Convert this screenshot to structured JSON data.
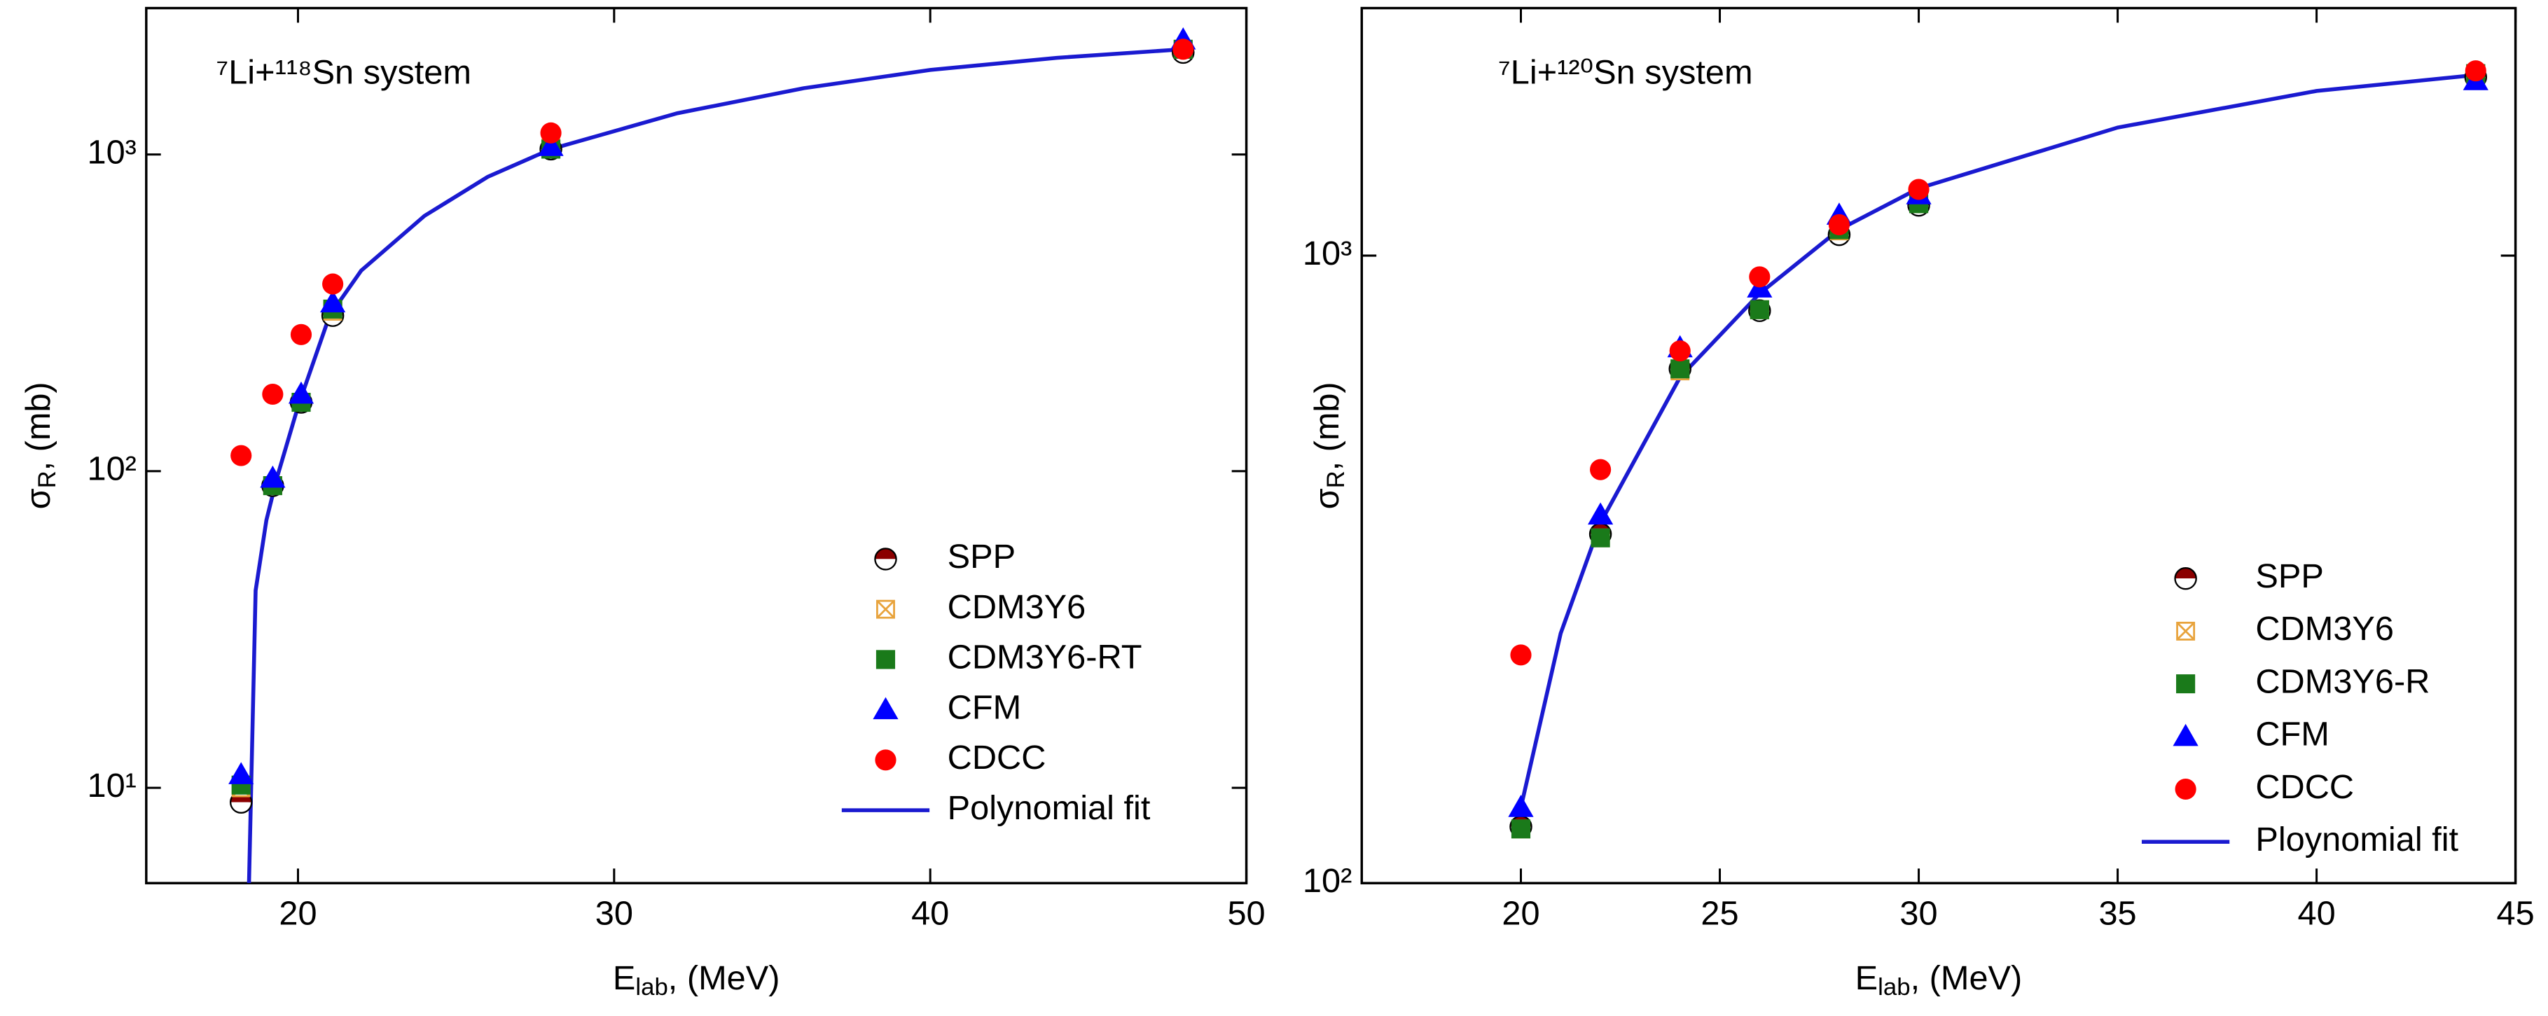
{
  "chart_data": {
    "charts": [
      {
        "type": "scatter",
        "title": "⁷Li+¹¹⁸Sn system",
        "x_label": [
          "E",
          "lab",
          ", (MeV)"
        ],
        "y_label": [
          "σ",
          "R",
          ", (mb)"
        ],
        "xlim": [
          15.2,
          50
        ],
        "xticks": [
          20,
          30,
          40,
          50
        ],
        "ylim": [
          5,
          2900
        ],
        "y_log": true,
        "yticks": [
          {
            "value": 10,
            "label": "10¹"
          },
          {
            "value": 100,
            "label": "10²"
          },
          {
            "value": 1000,
            "label": "10³"
          }
        ],
        "legend": "lower right",
        "series": [
          {
            "name": "SPP",
            "color": "#8b0000",
            "marker": "half-circle",
            "x": [
              18.2,
              19.2,
              20.1,
              21.1,
              28,
              48
            ],
            "values": [
              9,
              90,
              165,
              310,
              1040,
              2100
            ]
          },
          {
            "name": "CDM3Y6",
            "color": "#e8a33c",
            "marker": "crossed-square",
            "x": [
              18.2,
              19.2,
              20.1,
              21.1,
              28,
              48
            ],
            "values": [
              10,
              90,
              165,
              320,
              1050,
              2150
            ]
          },
          {
            "name": "CDM3Y6-RT",
            "color": "#1a7a1a",
            "marker": "square",
            "x": [
              18.2,
              19.2,
              20.1,
              21.1,
              28,
              48
            ],
            "values": [
              10.2,
              90,
              165,
              325,
              1040,
              2150
            ]
          },
          {
            "name": "CFM",
            "color": "#0000ff",
            "marker": "triangle",
            "x": [
              18.2,
              19.2,
              20.1,
              21.1,
              28,
              48
            ],
            "values": [
              11,
              95,
              175,
              340,
              1060,
              2300
            ]
          },
          {
            "name": "CDCC",
            "color": "#ff0000",
            "marker": "circle",
            "x": [
              18.2,
              19.2,
              20.1,
              21.1,
              28,
              48
            ],
            "values": [
              112,
              175,
              270,
              390,
              1170,
              2150
            ]
          },
          {
            "name": "Polynomial fit",
            "color": "#1a1ad0",
            "marker": "line",
            "x": [
              18.45,
              18.66,
              19.0,
              19.33,
              20,
              21,
              22,
              24,
              26,
              28,
              32,
              36,
              40,
              44,
              48
            ],
            "values": [
              5,
              42,
              70,
              95,
              160,
              310,
              430,
              640,
              850,
              1040,
              1350,
              1620,
              1850,
              2020,
              2150
            ]
          }
        ]
      },
      {
        "type": "scatter",
        "title": "⁷Li+¹²⁰Sn system",
        "x_label": [
          "E",
          "lab",
          ", (MeV)"
        ],
        "y_label": [
          "σ",
          "R",
          ", (mb)"
        ],
        "xlim": [
          16,
          45
        ],
        "xticks": [
          20,
          25,
          30,
          35,
          40,
          45
        ],
        "ylim": [
          100,
          2480
        ],
        "y_log": true,
        "yticks": [
          {
            "value": 100,
            "label": "10²"
          },
          {
            "value": 1000,
            "label": "10³"
          }
        ],
        "legend": "lower right",
        "series": [
          {
            "name": "SPP",
            "color": "#8b0000",
            "marker": "half-circle",
            "x": [
              20,
              22,
              24,
              26,
              28,
              30,
              44
            ],
            "values": [
              123,
              360,
              660,
              817,
              1080,
              1203,
              1925
            ]
          },
          {
            "name": "CDM3Y6",
            "color": "#e8a33c",
            "marker": "crossed-square",
            "x": [
              20,
              22,
              24,
              26,
              28,
              30,
              44
            ],
            "values": [
              122,
              355,
              655,
              820,
              1095,
              1210,
              1950
            ]
          },
          {
            "name": "CDM3Y6-R",
            "color": "#1a7a1a",
            "marker": "square",
            "x": [
              20,
              22,
              24,
              26,
              28,
              30,
              44
            ],
            "values": [
              122,
              355,
              660,
              820,
              1100,
              1210,
              1950
            ]
          },
          {
            "name": "CFM",
            "color": "#0000ff",
            "marker": "triangle",
            "x": [
              20,
              22,
              24,
              26,
              28,
              30,
              44
            ],
            "values": [
              132,
              386,
              713,
              888,
              1160,
              1250,
              1900
            ]
          },
          {
            "name": "CDCC",
            "color": "#ff0000",
            "marker": "circle",
            "x": [
              20,
              22,
              24,
              26,
              28,
              30,
              44
            ],
            "values": [
              231,
              456,
              705,
              925,
              1120,
              1275,
              1970
            ]
          },
          {
            "name": "Ploynomial fit",
            "color": "#1a1ad0",
            "marker": "line",
            "x": [
              20,
              21,
              22,
              24,
              26,
              28,
              30,
              35,
              40,
              44
            ],
            "values": [
              132,
              250,
              375,
              640,
              870,
              1100,
              1280,
              1600,
              1830,
              1940
            ]
          }
        ]
      }
    ]
  }
}
